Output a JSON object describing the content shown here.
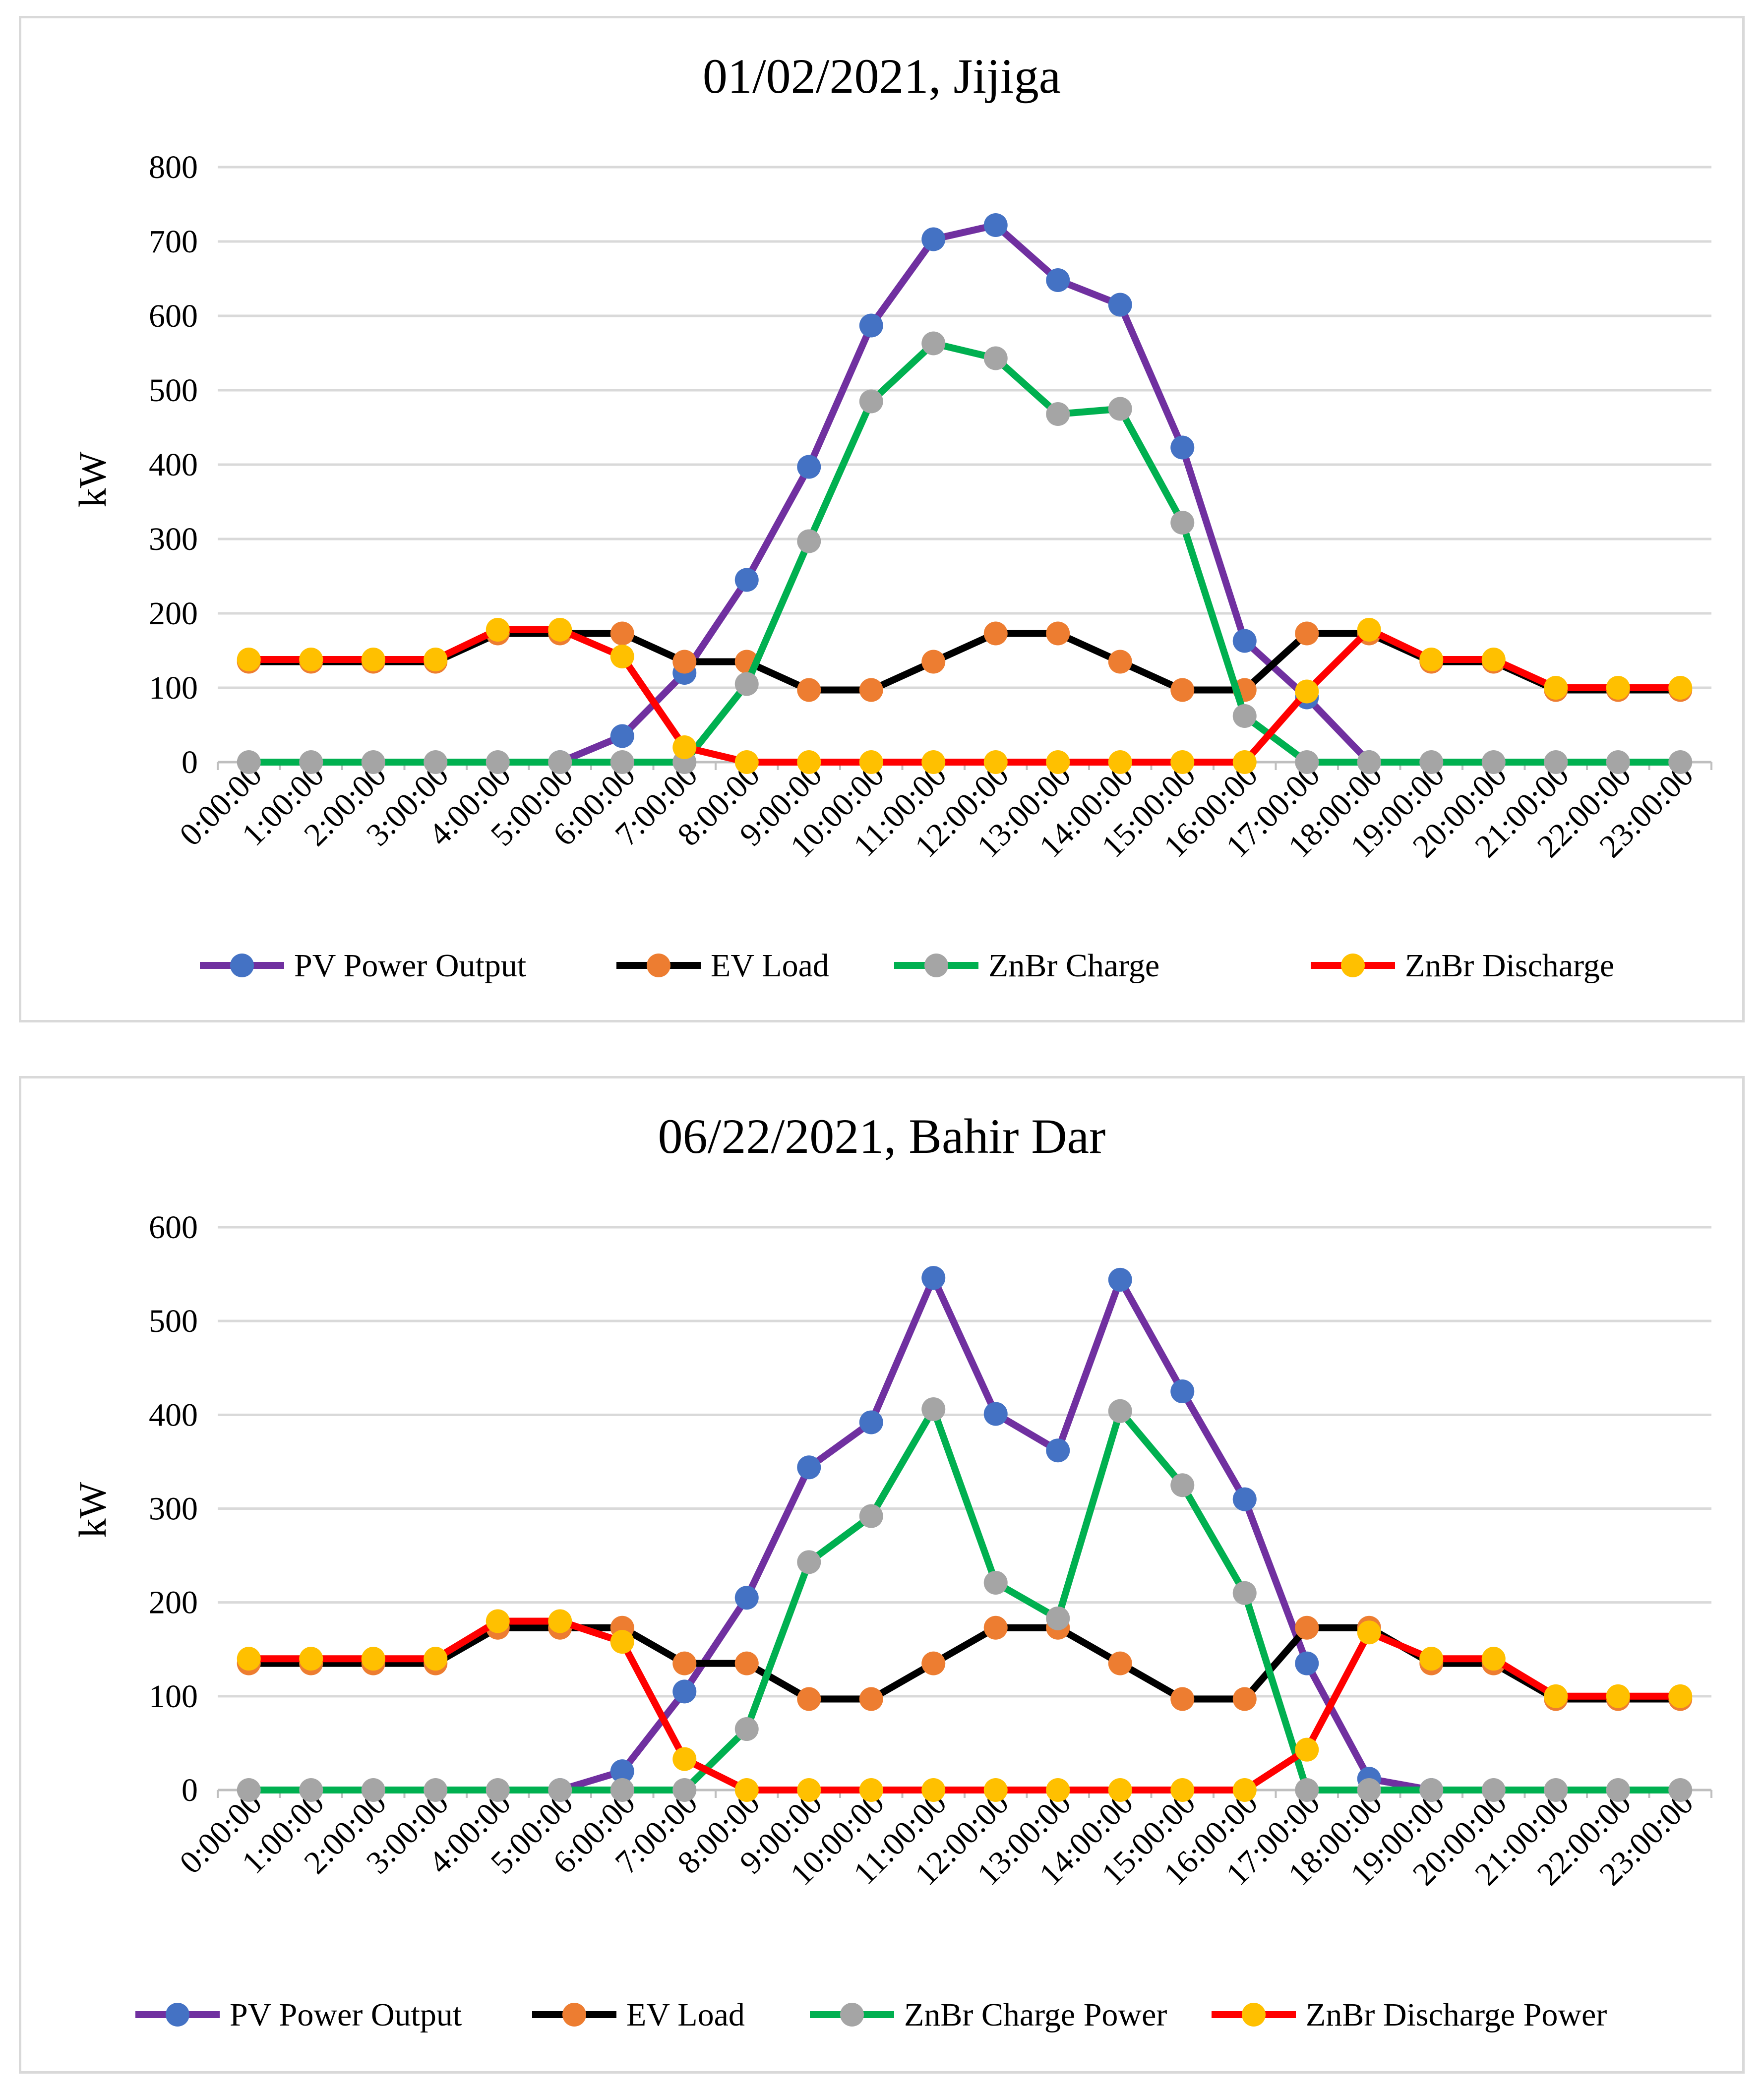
{
  "chart_data": [
    {
      "type": "line",
      "title": "01/02/2021, Jijiga",
      "xlabel": "",
      "ylabel": "kW",
      "ylim": [
        0,
        800
      ],
      "yticks": [
        0,
        100,
        200,
        300,
        400,
        500,
        600,
        700,
        800
      ],
      "grid": true,
      "legend_position": "bottom",
      "categories": [
        "0:00:00",
        "1:00:00",
        "2:00:00",
        "3:00:00",
        "4:00:00",
        "5:00:00",
        "6:00:00",
        "7:00:00",
        "8:00:00",
        "9:00:00",
        "10:00:00",
        "11:00:00",
        "12:00:00",
        "13:00:00",
        "14:00:00",
        "15:00:00",
        "16:00:00",
        "17:00:00",
        "18:00:00",
        "19:00:00",
        "20:00:00",
        "21:00:00",
        "22:00:00",
        "23:00:00"
      ],
      "series": [
        {
          "name": "PV Power Output",
          "line_color": "#7030a0",
          "marker_color": "#4472c4",
          "values": [
            null,
            null,
            null,
            null,
            null,
            0,
            35,
            120,
            245,
            397,
            587,
            703,
            722,
            648,
            615,
            423,
            163,
            87,
            0,
            null,
            null,
            null,
            null,
            null
          ]
        },
        {
          "name": "EV Load",
          "line_color": "#000000",
          "marker_color": "#ed7d31",
          "values": [
            135,
            135,
            135,
            135,
            173,
            173,
            173,
            135,
            135,
            97,
            97,
            135,
            173,
            173,
            135,
            97,
            97,
            173,
            173,
            135,
            135,
            97,
            97,
            97
          ]
        },
        {
          "name": "ZnBr Charge",
          "line_color": "#00b050",
          "marker_color": "#a5a5a5",
          "values": [
            0,
            0,
            0,
            0,
            0,
            0,
            0,
            0,
            105,
            297,
            485,
            563,
            543,
            468,
            475,
            322,
            62,
            0,
            0,
            0,
            0,
            0,
            0,
            0
          ]
        },
        {
          "name": "ZnBr Discharge",
          "line_color": "#ff0000",
          "marker_color": "#ffc000",
          "values": [
            138,
            138,
            138,
            138,
            178,
            178,
            142,
            20,
            0,
            0,
            0,
            0,
            0,
            0,
            0,
            0,
            0,
            95,
            178,
            138,
            138,
            100,
            100,
            100
          ]
        }
      ]
    },
    {
      "type": "line",
      "title": "06/22/2021, Bahir Dar",
      "xlabel": "",
      "ylabel": "kW",
      "ylim": [
        0,
        600
      ],
      "yticks": [
        0,
        100,
        200,
        300,
        400,
        500,
        600
      ],
      "grid": true,
      "legend_position": "bottom",
      "categories": [
        "0:00:00",
        "1:00:00",
        "2:00:00",
        "3:00:00",
        "4:00:00",
        "5:00:00",
        "6:00:00",
        "7:00:00",
        "8:00:00",
        "9:00:00",
        "10:00:00",
        "11:00:00",
        "12:00:00",
        "13:00:00",
        "14:00:00",
        "15:00:00",
        "16:00:00",
        "17:00:00",
        "18:00:00",
        "19:00:00",
        "20:00:00",
        "21:00:00",
        "22:00:00",
        "23:00:00"
      ],
      "series": [
        {
          "name": "PV Power Output",
          "line_color": "#7030a0",
          "marker_color": "#4472c4",
          "values": [
            null,
            null,
            null,
            null,
            null,
            0,
            20,
            105,
            205,
            344,
            392,
            546,
            401,
            362,
            544,
            425,
            310,
            135,
            12,
            0,
            null,
            null,
            null,
            null
          ]
        },
        {
          "name": "EV  Load",
          "line_color": "#000000",
          "marker_color": "#ed7d31",
          "values": [
            135,
            135,
            135,
            135,
            173,
            173,
            173,
            135,
            135,
            97,
            97,
            135,
            173,
            173,
            135,
            97,
            97,
            173,
            173,
            135,
            135,
            97,
            97,
            97
          ]
        },
        {
          "name": "ZnBr Charge Power",
          "line_color": "#00b050",
          "marker_color": "#a5a5a5",
          "values": [
            0,
            0,
            0,
            0,
            0,
            0,
            0,
            0,
            65,
            243,
            292,
            406,
            221,
            183,
            404,
            325,
            210,
            0,
            0,
            0,
            0,
            0,
            0,
            0
          ]
        },
        {
          "name": "ZnBr Discharge Power",
          "line_color": "#ff0000",
          "marker_color": "#ffc000",
          "values": [
            140,
            140,
            140,
            140,
            180,
            180,
            158,
            33,
            0,
            0,
            0,
            0,
            0,
            0,
            0,
            0,
            0,
            43,
            168,
            140,
            140,
            100,
            100,
            100
          ]
        }
      ]
    }
  ]
}
